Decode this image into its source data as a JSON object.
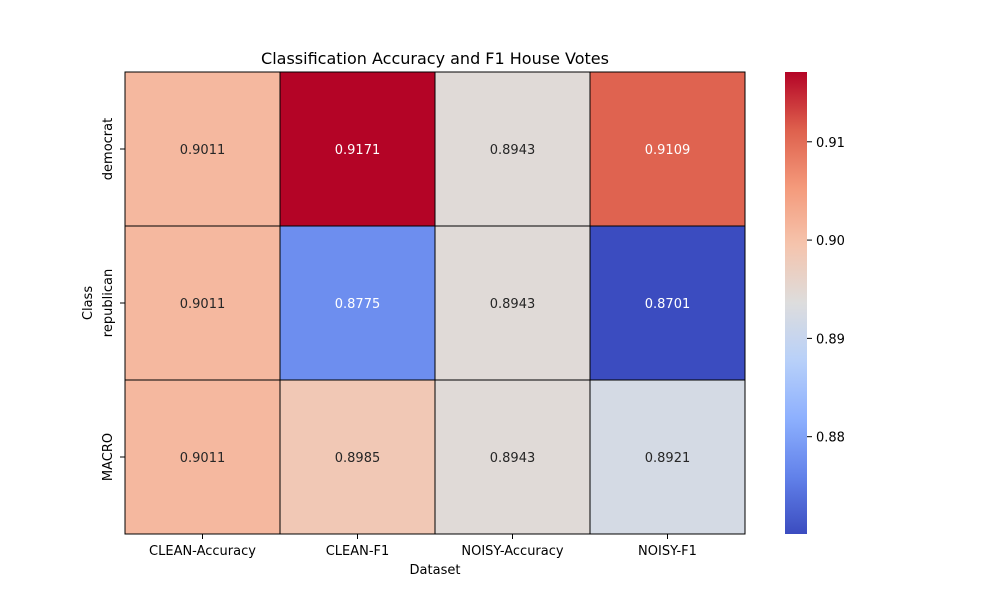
{
  "chart_data": {
    "type": "heatmap",
    "title": "Classification Accuracy and F1 House Votes",
    "xlabel": "Dataset",
    "ylabel": "Class",
    "x_categories": [
      "CLEAN-Accuracy",
      "CLEAN-F1",
      "NOISY-Accuracy",
      "NOISY-F1"
    ],
    "y_categories": [
      "democrat",
      "republican",
      "MACRO"
    ],
    "values": [
      [
        0.9011,
        0.9171,
        0.8943,
        0.9109
      ],
      [
        0.9011,
        0.8775,
        0.8943,
        0.8701
      ],
      [
        0.9011,
        0.8985,
        0.8943,
        0.8921
      ]
    ],
    "colormap": "coolwarm",
    "vmin": 0.8701,
    "vmax": 0.9171,
    "colorbar_ticks": [
      0.88,
      0.89,
      0.9,
      0.91
    ],
    "colorbar_tick_labels": [
      "0.88",
      "0.89",
      "0.90",
      "0.91"
    ],
    "grid": false
  }
}
